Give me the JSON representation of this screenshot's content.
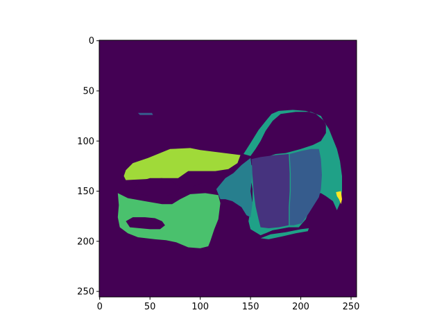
{
  "chart_data": {
    "type": "heatmap",
    "title": "",
    "xlabel": "",
    "ylabel": "",
    "xlim": [
      0,
      256
    ],
    "ylim": [
      256,
      0
    ],
    "x_ticks": [
      0,
      50,
      100,
      150,
      200,
      250
    ],
    "y_ticks": [
      0,
      50,
      100,
      150,
      200,
      250
    ],
    "colormap": "viridis",
    "background_color": "#440154",
    "description_of_regions": [
      {
        "label_value": 1,
        "color": "#46337e",
        "part": "front-door"
      },
      {
        "label_value": 2,
        "color": "#365c8d",
        "part": "rear-door"
      },
      {
        "label_value": 3,
        "color": "#277f8e",
        "part": "front-fender"
      },
      {
        "label_value": 4,
        "color": "#1fa187",
        "part": "roof-and-rear-quarter"
      },
      {
        "label_value": 5,
        "color": "#4ac16d",
        "part": "front-bumper"
      },
      {
        "label_value": 6,
        "color": "#a0da39",
        "part": "hood"
      },
      {
        "label_value": 7,
        "color": "#fde725",
        "part": "tail-light"
      }
    ]
  }
}
